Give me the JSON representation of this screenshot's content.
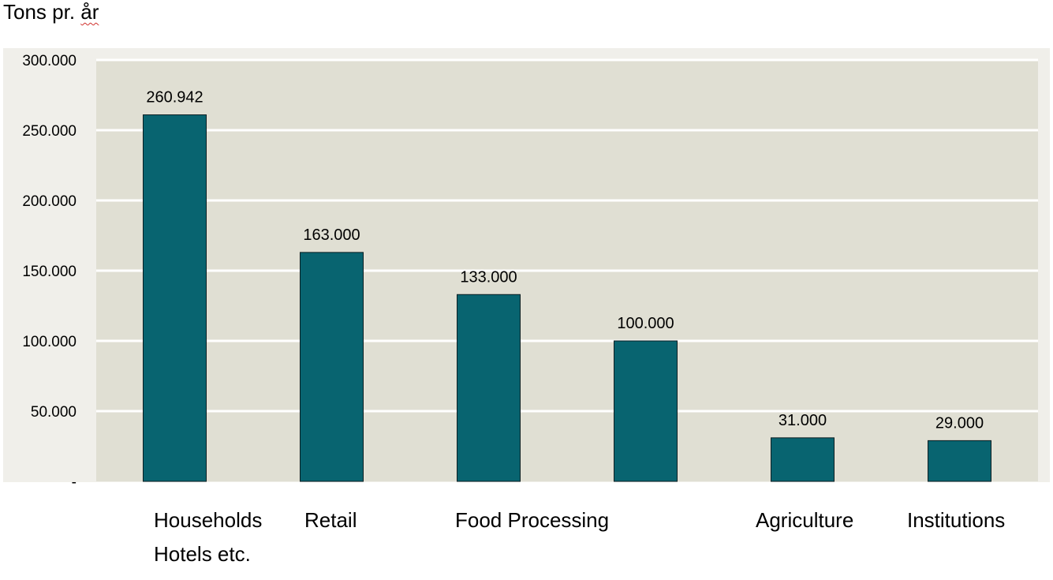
{
  "chart_data": {
    "type": "bar",
    "title": "",
    "unit_label": {
      "before": "Tons pr. ",
      "flagged": "år"
    },
    "xlabel": "",
    "ylabel": "Tons pr. år",
    "ylim": [
      0,
      300000
    ],
    "y_ticks": [
      0,
      50000,
      100000,
      150000,
      200000,
      250000,
      300000
    ],
    "y_tick_labels": [
      "-",
      "50.000",
      "100.000",
      "150.000",
      "200.000",
      "250.000",
      "300.000"
    ],
    "grid": true,
    "legend": "none",
    "categories": [
      "Households",
      "Retail",
      "Food Processing",
      "",
      "Agriculture",
      "Institutions"
    ],
    "category_label_lines": [
      [
        "Households",
        "Hotels etc."
      ],
      [
        "Retail"
      ],
      [],
      [
        "Food Processing"
      ],
      [
        "Agriculture"
      ],
      [
        "Institutions"
      ]
    ],
    "values": [
      260942,
      163000,
      133000,
      100000,
      31000,
      29000
    ],
    "value_labels": [
      "260.942",
      "163.000",
      "133.000",
      "100.000",
      "31.000",
      "29.000"
    ],
    "colors": {
      "bar": "#086470",
      "bar_border": "#0a1e22",
      "plot_bg": "#e0dfd3",
      "outer_bg": "#f0efea",
      "grid": "#ffffff"
    }
  }
}
